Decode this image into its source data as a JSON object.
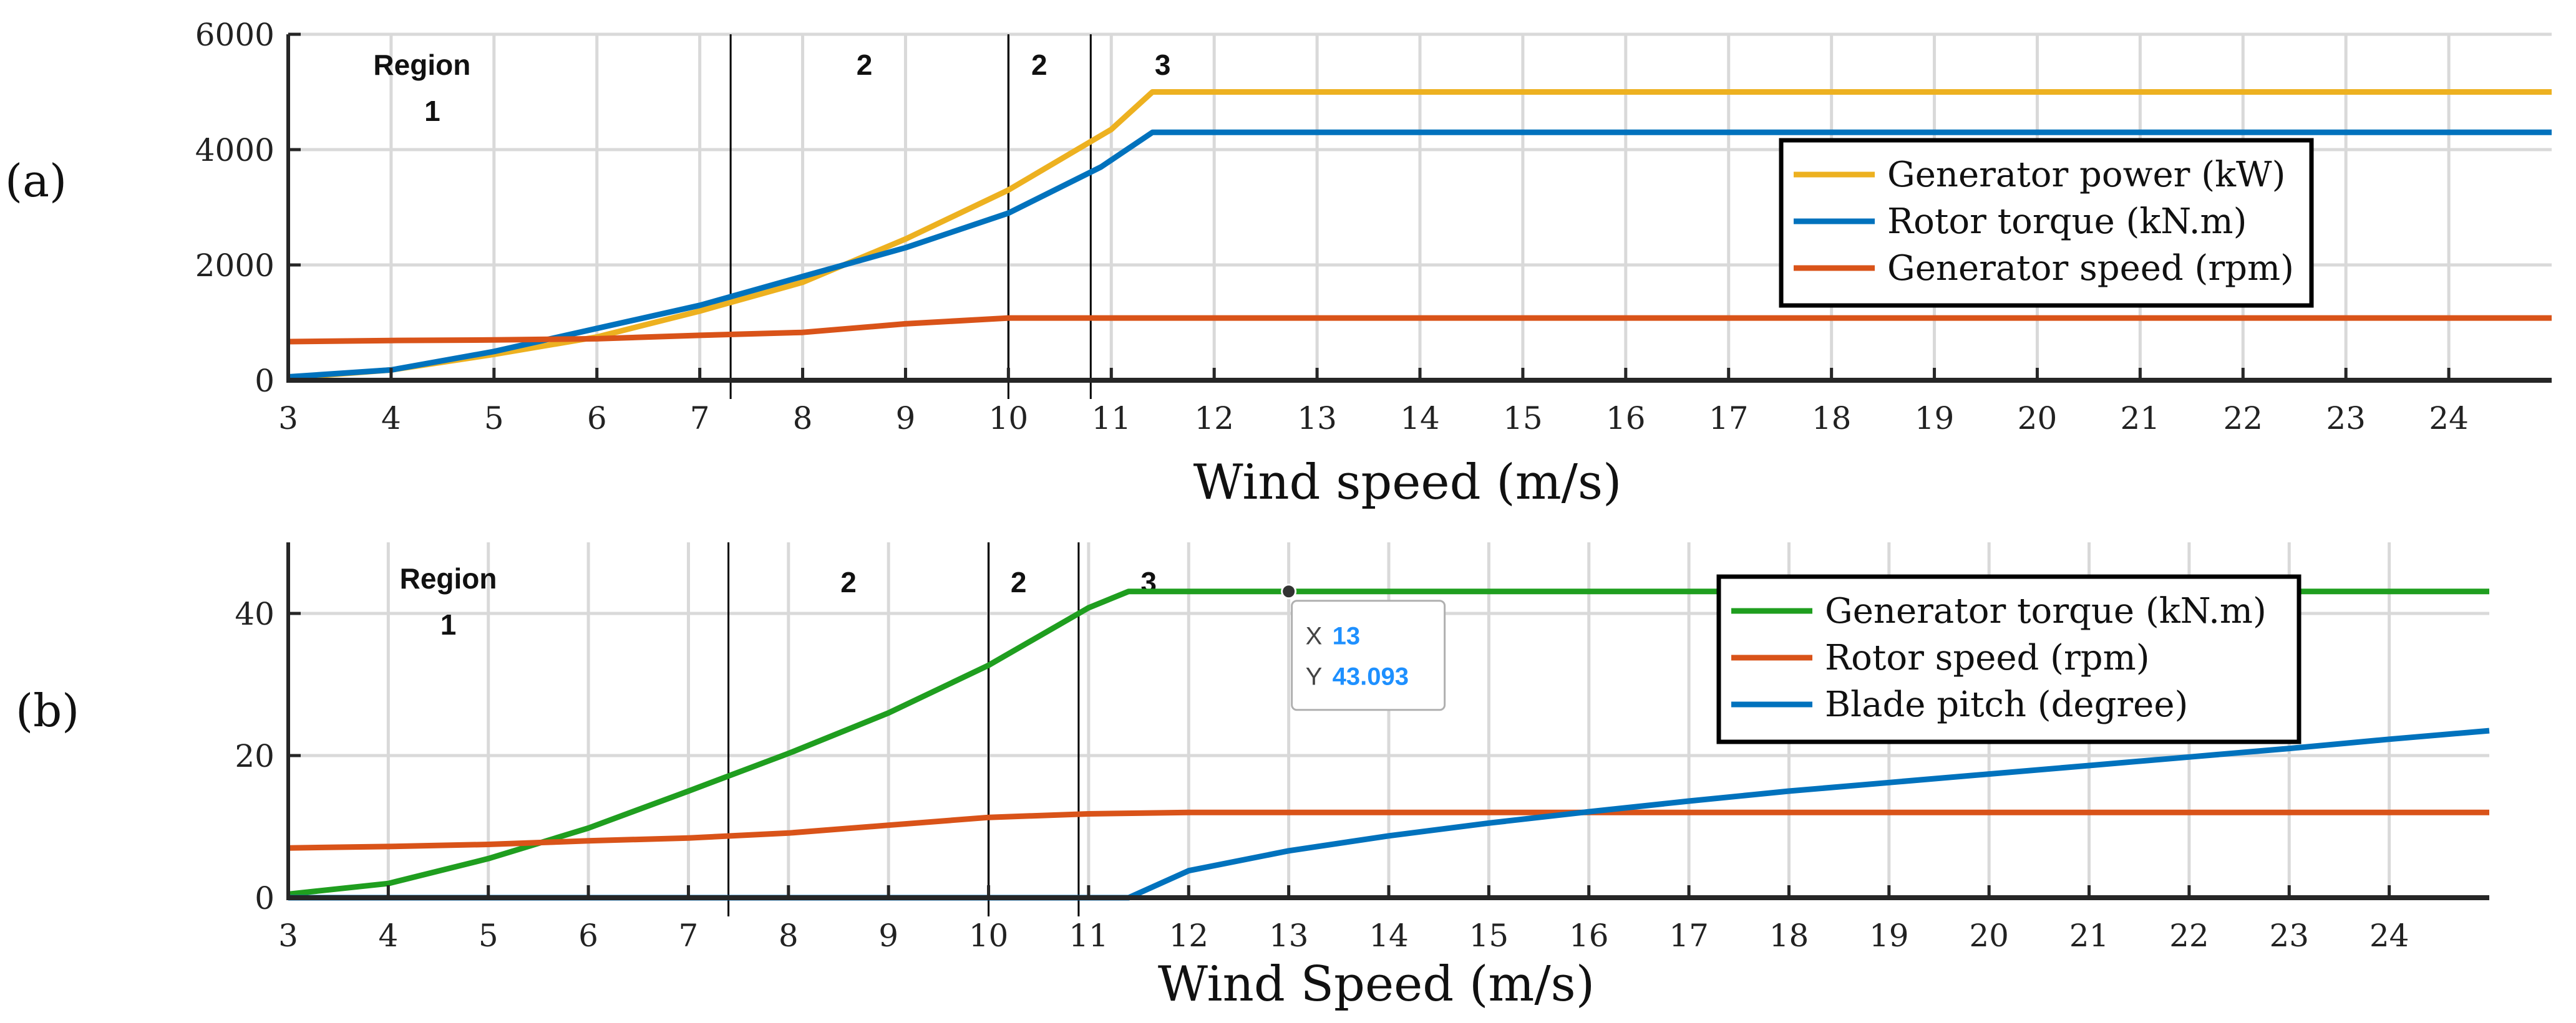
{
  "panels": {
    "a": {
      "label": "(a)"
    },
    "b": {
      "label": "(b)"
    }
  },
  "chart_data": [
    {
      "id": "a",
      "type": "line",
      "xlabel": "Wind speed (m/s)",
      "ylabel": "",
      "xlim": [
        3,
        25
      ],
      "ylim": [
        0,
        6000
      ],
      "xticks": [
        3,
        4,
        5,
        6,
        7,
        8,
        9,
        10,
        11,
        12,
        13,
        14,
        15,
        16,
        17,
        18,
        19,
        20,
        21,
        22,
        23,
        24
      ],
      "yticks": [
        0,
        2000,
        4000,
        6000
      ],
      "grid": true,
      "region_lines": [
        7.3,
        10.0,
        10.8
      ],
      "region_labels": [
        {
          "text": "Region",
          "x": 4.3,
          "y": 5300
        },
        {
          "text": "1",
          "x": 4.4,
          "y": 4500
        },
        {
          "text": "2",
          "x": 8.6,
          "y": 5300
        },
        {
          "text": "2",
          "x": 10.3,
          "y": 5300
        },
        {
          "text": "3",
          "x": 11.5,
          "y": 5300
        }
      ],
      "legend_position": "right",
      "series": [
        {
          "name": "Generator power (kW)",
          "color": "#EDB120",
          "x": [
            3,
            4,
            5,
            6,
            7,
            8,
            9,
            10,
            11,
            11.4,
            25
          ],
          "y": [
            40,
            180,
            450,
            750,
            1200,
            1700,
            2450,
            3300,
            4350,
            5000,
            5000
          ]
        },
        {
          "name": "Rotor torque (kN.m)",
          "color": "#0072BD",
          "x": [
            3,
            4,
            5,
            6,
            7,
            8,
            9,
            10,
            10.9,
            11.4,
            25
          ],
          "y": [
            60,
            180,
            500,
            900,
            1300,
            1800,
            2300,
            2900,
            3700,
            4300,
            4300
          ]
        },
        {
          "name": "Generator speed (rpm)",
          "color": "#D95319",
          "x": [
            3,
            4,
            5,
            6,
            7,
            8,
            9,
            10,
            25
          ],
          "y": [
            670,
            690,
            700,
            720,
            780,
            830,
            980,
            1080,
            1080
          ]
        }
      ]
    },
    {
      "id": "b",
      "type": "line",
      "xlabel": "Wind Speed (m/s)",
      "ylabel": "",
      "xlim": [
        3,
        25
      ],
      "ylim": [
        0,
        50
      ],
      "xticks": [
        3,
        4,
        5,
        6,
        7,
        8,
        9,
        10,
        11,
        12,
        13,
        14,
        15,
        16,
        17,
        18,
        19,
        20,
        21,
        22,
        23,
        24
      ],
      "yticks": [
        0,
        20,
        40
      ],
      "grid": true,
      "region_lines": [
        7.4,
        10.0,
        10.9
      ],
      "region_labels": [
        {
          "text": "Region",
          "x": 4.6,
          "y": 43.5
        },
        {
          "text": "1",
          "x": 4.6,
          "y": 37
        },
        {
          "text": "2",
          "x": 8.6,
          "y": 43
        },
        {
          "text": "2",
          "x": 10.3,
          "y": 43
        },
        {
          "text": "3",
          "x": 11.6,
          "y": 43
        }
      ],
      "legend_position": "right",
      "datatip": {
        "x": 13,
        "y": 43.093,
        "x_label": "X",
        "y_label": "Y",
        "x_text": "13",
        "y_text": "43.093"
      },
      "series": [
        {
          "name": "Generator torque (kN.m)",
          "color": "#1F9E1F",
          "x": [
            3,
            4,
            5,
            6,
            7,
            8,
            9,
            10,
            11,
            11.4,
            25
          ],
          "y": [
            0.5,
            2,
            5.5,
            9.8,
            15,
            20.3,
            26,
            32.7,
            40.8,
            43.093,
            43.093
          ]
        },
        {
          "name": "Rotor speed (rpm)",
          "color": "#D95319",
          "x": [
            3,
            4,
            5,
            6,
            7,
            8,
            9,
            10,
            11,
            12,
            25
          ],
          "y": [
            7,
            7.2,
            7.5,
            8,
            8.4,
            9.1,
            10.2,
            11.3,
            11.8,
            12,
            12
          ]
        },
        {
          "name": "Blade pitch (degree)",
          "color": "#0072BD",
          "x": [
            3,
            11.4,
            12,
            13,
            14,
            15,
            16,
            17,
            18,
            19,
            20,
            21,
            22,
            23,
            24,
            25
          ],
          "y": [
            0,
            0,
            3.8,
            6.6,
            8.7,
            10.5,
            12.1,
            13.6,
            15,
            16.2,
            17.4,
            18.6,
            19.8,
            21,
            22.3,
            23.5
          ]
        }
      ]
    }
  ]
}
